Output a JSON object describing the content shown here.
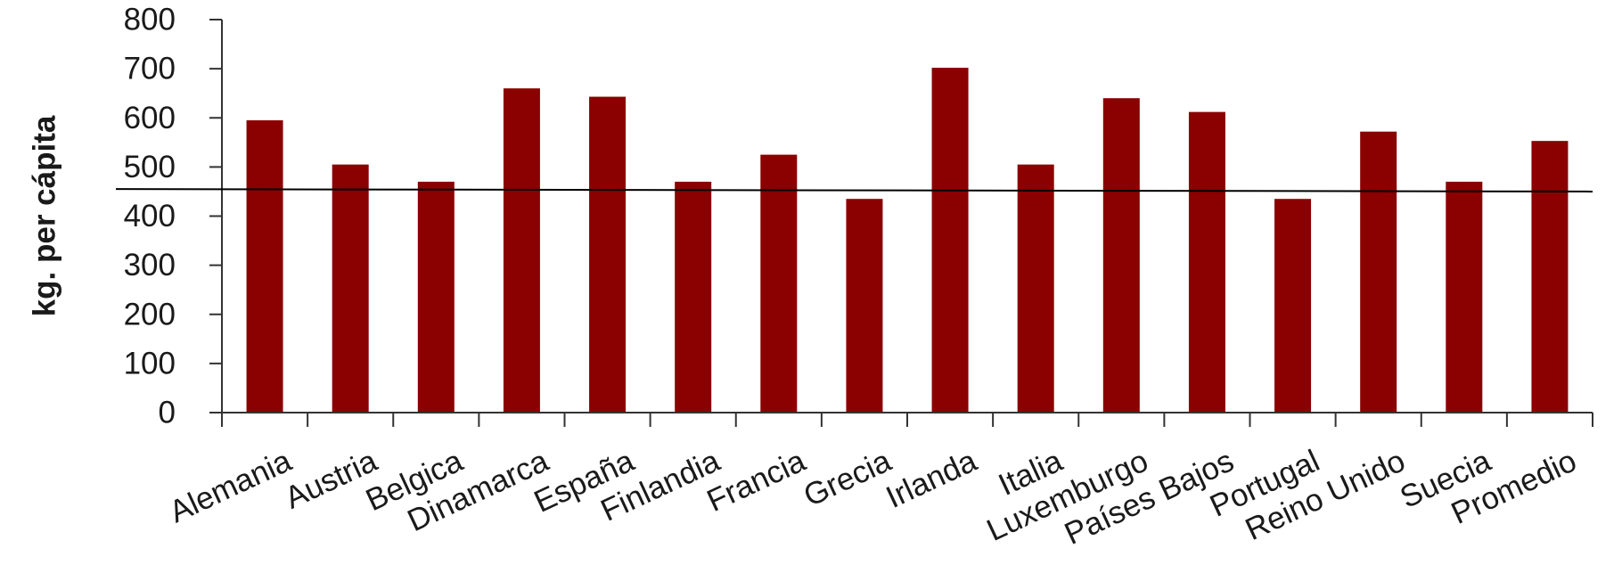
{
  "chart_data": {
    "type": "bar",
    "title": "",
    "xlabel": "",
    "ylabel": "kg. per cápita",
    "ylim": [
      0,
      800
    ],
    "yticks": [
      "0",
      "100",
      "200",
      "300",
      "400",
      "500",
      "600",
      "700",
      "800"
    ],
    "categories": [
      "Alemania",
      "Austria",
      "Belgica",
      "Dinamarca",
      "España",
      "Finlandia",
      "Francia",
      "Grecia",
      "Irlanda",
      "Italia",
      "Luxemburgo",
      "Países Bajos",
      "Portugal",
      "Reino Unido",
      "Suecia",
      "Promedio"
    ],
    "values": [
      595,
      505,
      470,
      660,
      643,
      470,
      525,
      435,
      702,
      505,
      640,
      612,
      435,
      572,
      470,
      553
    ],
    "reference_line": [
      455,
      450
    ],
    "grid": false,
    "legend": "none",
    "colors": {
      "bar": "#8b0000",
      "axis": "#333333",
      "reference_line": "#000000"
    }
  }
}
